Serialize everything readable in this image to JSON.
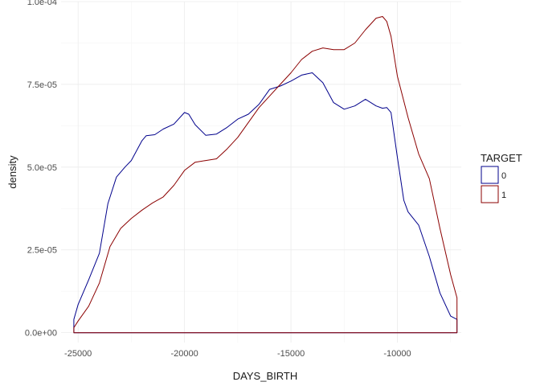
{
  "chart_data": {
    "type": "area",
    "xlabel": "DAYS_BIRTH",
    "ylabel": "density",
    "xlim": [
      -25800,
      -7000
    ],
    "ylim": [
      -3e-06,
      0.0001
    ],
    "x_ticks": [
      -25000,
      -20000,
      -15000,
      -10000
    ],
    "x_tick_labels": [
      "-25000",
      "-20000",
      "-15000",
      "-10000"
    ],
    "y_ticks": [
      0,
      2.5e-05,
      5e-05,
      7.5e-05,
      0.0001
    ],
    "y_tick_labels": [
      "0.0e+00",
      "2.5e-05",
      "5.0e-05",
      "7.5e-05",
      "1.0e-04"
    ],
    "grid": true,
    "legend": {
      "title": "TARGET",
      "position": "right"
    },
    "series": [
      {
        "name": "0",
        "color": "#00008B",
        "x": [
          -25200,
          -25000,
          -24500,
          -24000,
          -23600,
          -23200,
          -22800,
          -22500,
          -22000,
          -21800,
          -21400,
          -21000,
          -20500,
          -20000,
          -19800,
          -19500,
          -19000,
          -18500,
          -18000,
          -17500,
          -17000,
          -16500,
          -16000,
          -15500,
          -15000,
          -14500,
          -14000,
          -13500,
          -13000,
          -12500,
          -12000,
          -11500,
          -11000,
          -10700,
          -10500,
          -10300,
          -10000,
          -9700,
          -9500,
          -9000,
          -8500,
          -8000,
          -7500,
          -7200
        ],
        "y": [
          4e-06,
          8.5e-06,
          1.6e-05,
          2.4e-05,
          3.9e-05,
          4.7e-05,
          5e-05,
          5.2e-05,
          5.8e-05,
          5.95e-05,
          5.98e-05,
          6.15e-05,
          6.3e-05,
          6.65e-05,
          6.6e-05,
          6.28e-05,
          5.96e-05,
          6e-05,
          6.2e-05,
          6.45e-05,
          6.6e-05,
          6.9e-05,
          7.35e-05,
          7.45e-05,
          7.6e-05,
          7.78e-05,
          7.85e-05,
          7.55e-05,
          6.95e-05,
          6.75e-05,
          6.85e-05,
          7.05e-05,
          6.85e-05,
          6.78e-05,
          6.8e-05,
          6.65e-05,
          5.3e-05,
          4e-05,
          3.65e-05,
          3.25e-05,
          2.3e-05,
          1.2e-05,
          5e-06,
          4e-06
        ]
      },
      {
        "name": "1",
        "color": "#8B0000",
        "x": [
          -25200,
          -25000,
          -24500,
          -24000,
          -23500,
          -23000,
          -22500,
          -22000,
          -21500,
          -21000,
          -20500,
          -20000,
          -19500,
          -19000,
          -18500,
          -18000,
          -17500,
          -17000,
          -16500,
          -16000,
          -15500,
          -15000,
          -14500,
          -14000,
          -13500,
          -13000,
          -12500,
          -12000,
          -11500,
          -11000,
          -10700,
          -10500,
          -10300,
          -10000,
          -9500,
          -9000,
          -8500,
          -8000,
          -7500,
          -7200
        ],
        "y": [
          1.5e-06,
          3.5e-06,
          8e-06,
          1.5e-05,
          2.6e-05,
          3.15e-05,
          3.45e-05,
          3.7e-05,
          3.92e-05,
          4.1e-05,
          4.45e-05,
          4.9e-05,
          5.15e-05,
          5.2e-05,
          5.25e-05,
          5.55e-05,
          5.9e-05,
          6.35e-05,
          6.8e-05,
          7.15e-05,
          7.5e-05,
          7.85e-05,
          8.25e-05,
          8.5e-05,
          8.6e-05,
          8.55e-05,
          8.55e-05,
          8.75e-05,
          9.15e-05,
          9.5e-05,
          9.55e-05,
          9.4e-05,
          8.95e-05,
          7.75e-05,
          6.5e-05,
          5.4e-05,
          4.65e-05,
          3.15e-05,
          1.75e-05,
          1.05e-05
        ]
      }
    ]
  }
}
